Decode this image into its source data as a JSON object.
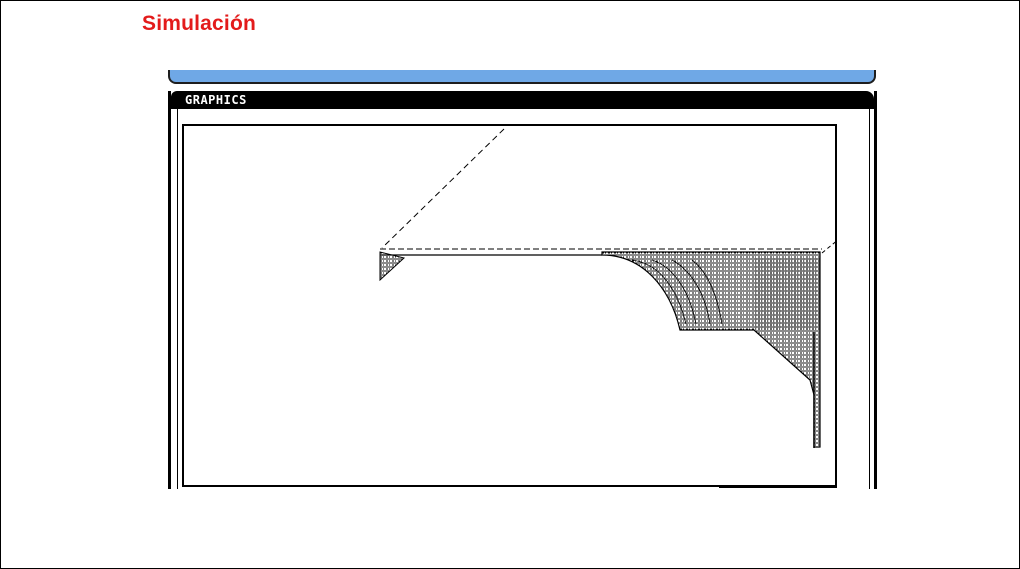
{
  "slide": {
    "title": "Simulación"
  },
  "window": {
    "panel_title": "GRAPHICS"
  },
  "colors": {
    "title": "#e31b1b",
    "title_bar": "#6fa8e6",
    "header_bg": "#000000",
    "header_text": "#ffffff"
  },
  "icons": {
    "toolpath": "dashed-line",
    "material": "hatched-region"
  }
}
